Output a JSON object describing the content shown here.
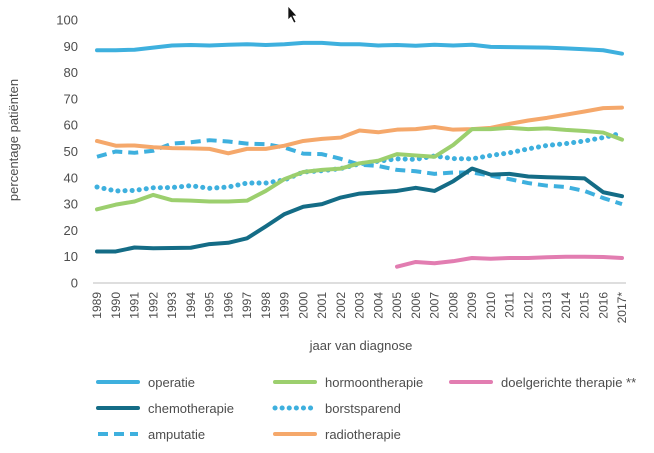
{
  "chart_data": {
    "type": "line",
    "xlabel": "jaar van diagnose",
    "ylabel": "percentage patiënten",
    "ylim": [
      0,
      100
    ],
    "yticks": [
      0,
      10,
      20,
      30,
      40,
      50,
      60,
      70,
      80,
      90,
      100
    ],
    "grid": false,
    "legend_position": "bottom",
    "categories": [
      "1989",
      "1990",
      "1991",
      "1992",
      "1993",
      "1994",
      "1995",
      "1996",
      "1997",
      "1998",
      "1999",
      "2000",
      "2001",
      "2002",
      "2003",
      "2004",
      "2005",
      "2006",
      "2007",
      "2008",
      "2009",
      "2010",
      "2011",
      "2012",
      "2013",
      "2014",
      "2015",
      "2016",
      "2017*"
    ],
    "series": [
      {
        "name": "operatie",
        "color": "#3eb0de",
        "style": "solid",
        "values": [
          88.5,
          88.5,
          88.7,
          89.5,
          90.3,
          90.5,
          90.3,
          90.6,
          90.8,
          90.5,
          90.8,
          91.3,
          91.3,
          90.8,
          90.8,
          90.3,
          90.5,
          90.2,
          90.6,
          90.3,
          90.6,
          89.8,
          89.7,
          89.6,
          89.5,
          89.2,
          88.9,
          88.5,
          87.2
        ]
      },
      {
        "name": "chemotherapie",
        "color": "#146c86",
        "style": "solid",
        "values": [
          12,
          12,
          13.5,
          13.2,
          13.3,
          13.4,
          14.8,
          15.3,
          17,
          21.5,
          26.2,
          29,
          30,
          32.5,
          34,
          34.5,
          35,
          36.2,
          35,
          38.7,
          43.5,
          41.2,
          41.5,
          40.5,
          40.2,
          40,
          39.8,
          34.5,
          33
        ]
      },
      {
        "name": "amputatie",
        "color": "#3eb0de",
        "style": "dash",
        "values": [
          48,
          50,
          49.5,
          50.3,
          53,
          53.5,
          54.3,
          53.8,
          53,
          52.8,
          51.5,
          49.2,
          49,
          47.2,
          45,
          44.5,
          43,
          42.5,
          41.5,
          42,
          42,
          40.8,
          39.5,
          38,
          37,
          36.5,
          35,
          32.3,
          30
        ]
      },
      {
        "name": "hormoontherapie",
        "color": "#9ccf6e",
        "style": "solid",
        "values": [
          28,
          29.8,
          31,
          33.5,
          31.5,
          31.3,
          31,
          31,
          31.3,
          35,
          39.5,
          42.2,
          43,
          43.5,
          45.5,
          46.5,
          49,
          48.5,
          48,
          52.5,
          58.5,
          58.5,
          59,
          58.5,
          58.8,
          58.2,
          57.8,
          57.2,
          54.5
        ]
      },
      {
        "name": "borstsparend",
        "color": "#3eb0de",
        "style": "dot",
        "values": [
          36.5,
          35,
          35.2,
          36.2,
          36.3,
          37,
          36,
          36.5,
          38,
          38,
          39.2,
          42.2,
          42.7,
          43.5,
          45.3,
          46.3,
          47.2,
          47,
          48.3,
          47.3,
          47.2,
          48.5,
          49.5,
          51,
          52.3,
          53,
          54,
          55.3,
          57
        ]
      },
      {
        "name": "radiotherapie",
        "color": "#f5a86b",
        "style": "solid",
        "values": [
          54,
          52.2,
          52.3,
          51.6,
          51.3,
          51.2,
          51,
          49.3,
          51,
          51,
          52.2,
          54,
          54.8,
          55.3,
          58,
          57.3,
          58.3,
          58.5,
          59.3,
          58.3,
          58.5,
          59,
          60.5,
          61.8,
          62.8,
          64,
          65.2,
          66.5,
          66.7
        ]
      },
      {
        "name": "doelgerichte therapie **",
        "color": "#e27db1",
        "style": "solid",
        "values": [
          null,
          null,
          null,
          null,
          null,
          null,
          null,
          null,
          null,
          null,
          null,
          null,
          null,
          null,
          null,
          null,
          6.2,
          8,
          7.5,
          8.3,
          9.5,
          9.2,
          9.5,
          9.5,
          9.8,
          10,
          10,
          9.9,
          9.5
        ]
      }
    ]
  }
}
